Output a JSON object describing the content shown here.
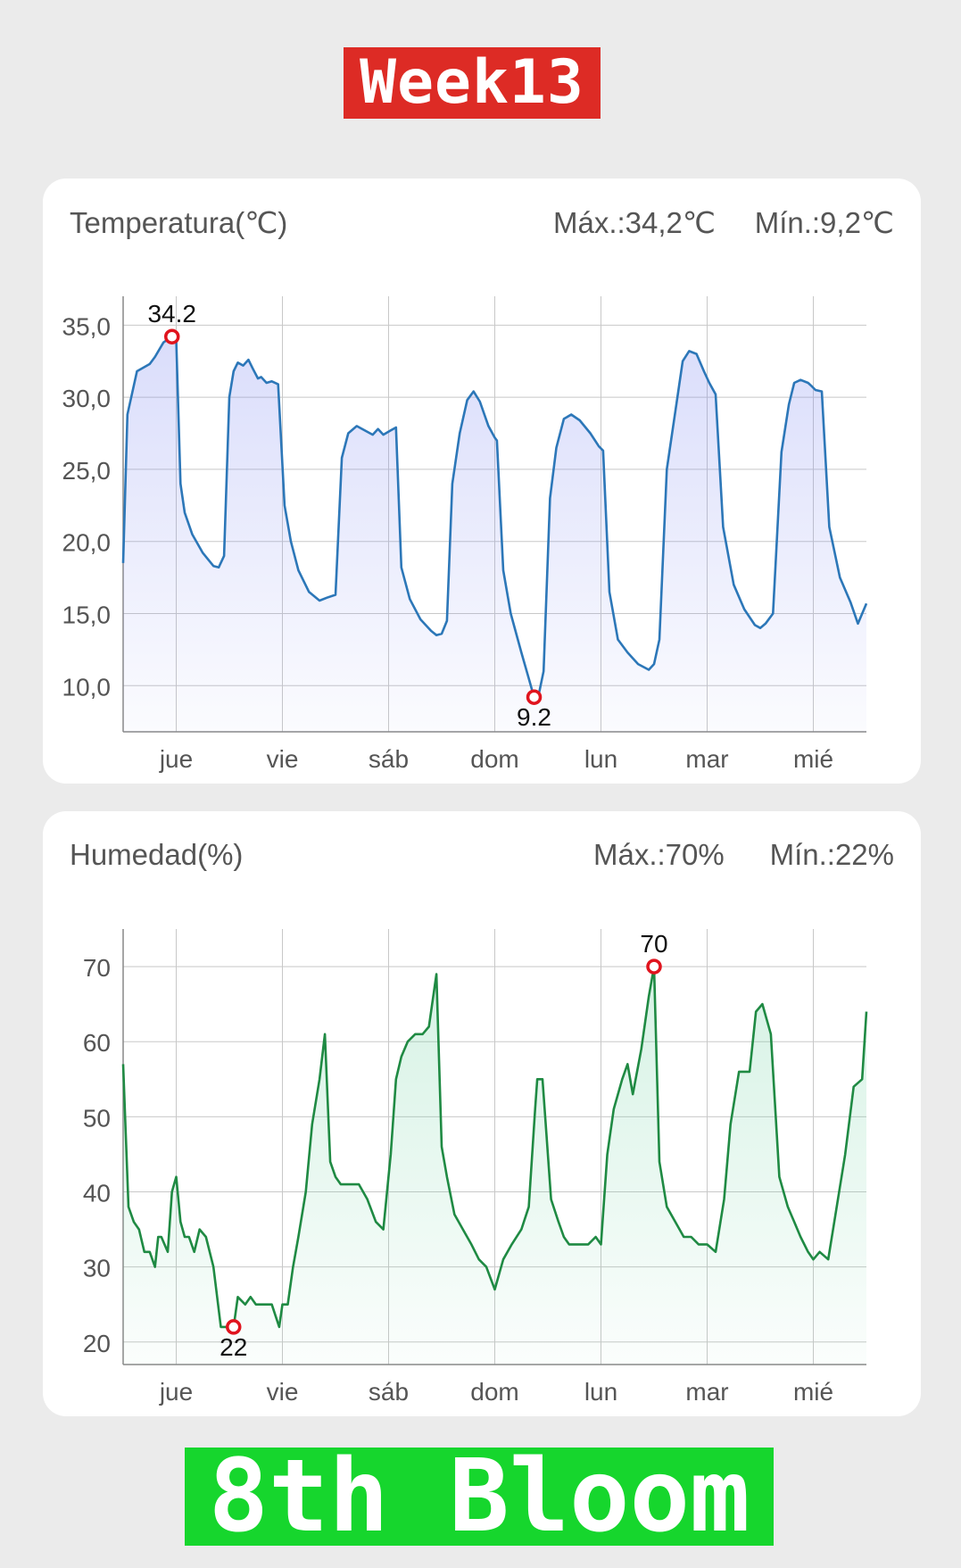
{
  "header": {
    "week_label": "Week13"
  },
  "footer": {
    "stage_label": "8th Bloom"
  },
  "colors": {
    "week_banner": "#dd2b25",
    "stage_banner": "#16d62d",
    "temp_line": "#2c77b8",
    "hum_line": "#1f8a43",
    "marker": "#e0141e"
  },
  "temperature": {
    "title": "Temperatura(℃)",
    "max_label": "Máx.:34,2℃",
    "min_label": "Mín.:9,2℃",
    "max_point_label": "34.2",
    "min_point_label": "9.2"
  },
  "humidity": {
    "title": "Humedad(%)",
    "max_label": "Máx.:70%",
    "min_label": "Mín.:22%",
    "max_point_label": "70",
    "min_point_label": "22"
  },
  "chart_data": [
    {
      "type": "area",
      "title": "Temperatura(℃)",
      "xlabel": "",
      "ylabel": "",
      "xlim": [
        0,
        7
      ],
      "ylim": [
        6.8,
        37
      ],
      "yticks": [
        10,
        15,
        20,
        25,
        30,
        35
      ],
      "ytick_labels": [
        "10,0",
        "15,0",
        "20,0",
        "25,0",
        "30,0",
        "35,0"
      ],
      "xticks": [
        0.5,
        1.5,
        2.5,
        3.5,
        4.5,
        5.5,
        6.5
      ],
      "xtick_labels": [
        "jue",
        "vie",
        "sáb",
        "dom",
        "lun",
        "mar",
        "mié"
      ],
      "grid": true,
      "max_point": {
        "x": 0.46,
        "y": 34.2
      },
      "min_point": {
        "x": 3.87,
        "y": 9.2
      },
      "series": [
        {
          "x": [
            0,
            0.04,
            0.13,
            0.25,
            0.3,
            0.38,
            0.46,
            0.5,
            0.54,
            0.58,
            0.65,
            0.75,
            0.85,
            0.9,
            0.95,
            1.0,
            1.04,
            1.08,
            1.13,
            1.18,
            1.22,
            1.27,
            1.3,
            1.35,
            1.4,
            1.46,
            1.52,
            1.58,
            1.65,
            1.75,
            1.85,
            1.92,
            2.0,
            2.06,
            2.12,
            2.2,
            2.3,
            2.35,
            2.4,
            2.45,
            2.52,
            2.57,
            2.62,
            2.7,
            2.8,
            2.9,
            2.95,
            3.0,
            3.05,
            3.1,
            3.17,
            3.24,
            3.3,
            3.36,
            3.44,
            3.5,
            3.52,
            3.58,
            3.65,
            3.75,
            3.82,
            3.87,
            3.92,
            3.96,
            4.02,
            4.08,
            4.15,
            4.22,
            4.3,
            4.4,
            4.48,
            4.52,
            4.58,
            4.66,
            4.75,
            4.85,
            4.95,
            5.0,
            5.05,
            5.12,
            5.2,
            5.27,
            5.33,
            5.4,
            5.47,
            5.52,
            5.58,
            5.65,
            5.75,
            5.85,
            5.95,
            6.0,
            6.05,
            6.12,
            6.2,
            6.27,
            6.32,
            6.38,
            6.45,
            6.48,
            6.52,
            6.58,
            6.65,
            6.75,
            6.85,
            6.92,
            7.0
          ],
          "values": [
            18.5,
            28.8,
            31.8,
            32.3,
            32.8,
            33.8,
            34.2,
            34.0,
            24.0,
            22.0,
            20.5,
            19.2,
            18.3,
            18.2,
            19.0,
            30.0,
            31.8,
            32.4,
            32.2,
            32.6,
            32.0,
            31.3,
            31.4,
            31.0,
            31.1,
            30.9,
            22.5,
            20.0,
            18.0,
            16.5,
            15.9,
            16.1,
            16.3,
            25.8,
            27.5,
            28.0,
            27.6,
            27.4,
            27.8,
            27.4,
            27.7,
            27.9,
            18.2,
            16.0,
            14.6,
            13.8,
            13.5,
            13.6,
            14.5,
            24.0,
            27.5,
            29.8,
            30.4,
            29.7,
            28.0,
            27.2,
            27.0,
            18.0,
            15.0,
            12.3,
            10.5,
            9.2,
            9.6,
            11.0,
            23.0,
            26.5,
            28.5,
            28.8,
            28.4,
            27.5,
            26.6,
            26.3,
            16.5,
            13.2,
            12.3,
            11.5,
            11.1,
            11.5,
            13.2,
            25.0,
            29.0,
            32.5,
            33.2,
            33.0,
            31.8,
            31.0,
            30.2,
            21.0,
            17.0,
            15.3,
            14.2,
            14.0,
            14.3,
            15.0,
            26.2,
            29.5,
            31.0,
            31.2,
            31.0,
            30.8,
            30.5,
            30.4,
            21.0,
            17.5,
            15.8,
            14.3,
            15.7
          ]
        }
      ]
    },
    {
      "type": "area",
      "title": "Humedad(%)",
      "xlabel": "",
      "ylabel": "",
      "xlim": [
        0,
        7
      ],
      "ylim": [
        17,
        75
      ],
      "yticks": [
        20,
        30,
        40,
        50,
        60,
        70
      ],
      "ytick_labels": [
        "20",
        "30",
        "40",
        "50",
        "60",
        "70"
      ],
      "xticks": [
        0.5,
        1.5,
        2.5,
        3.5,
        4.5,
        5.5,
        6.5
      ],
      "xtick_labels": [
        "jue",
        "vie",
        "sáb",
        "dom",
        "lun",
        "mar",
        "mié"
      ],
      "grid": true,
      "max_point": {
        "x": 5.0,
        "y": 70
      },
      "min_point": {
        "x": 1.04,
        "y": 22
      },
      "series": [
        {
          "x": [
            0,
            0.05,
            0.1,
            0.15,
            0.2,
            0.25,
            0.3,
            0.33,
            0.36,
            0.42,
            0.46,
            0.5,
            0.54,
            0.58,
            0.62,
            0.67,
            0.72,
            0.78,
            0.85,
            0.92,
            0.98,
            1.04,
            1.08,
            1.15,
            1.2,
            1.25,
            1.3,
            1.35,
            1.4,
            1.47,
            1.5,
            1.55,
            1.6,
            1.65,
            1.72,
            1.78,
            1.85,
            1.9,
            1.95,
            2.0,
            2.05,
            2.08,
            2.15,
            2.22,
            2.3,
            2.38,
            2.45,
            2.52,
            2.57,
            2.62,
            2.68,
            2.75,
            2.82,
            2.88,
            2.95,
            3.0,
            3.05,
            3.12,
            3.2,
            3.28,
            3.35,
            3.42,
            3.5,
            3.58,
            3.66,
            3.75,
            3.82,
            3.88,
            3.9,
            3.95,
            4.03,
            4.1,
            4.15,
            4.2,
            4.25,
            4.3,
            4.38,
            4.45,
            4.5,
            4.56,
            4.62,
            4.7,
            4.75,
            4.8,
            4.88,
            4.95,
            5.0,
            5.05,
            5.12,
            5.2,
            5.28,
            5.35,
            5.42,
            5.5,
            5.58,
            5.66,
            5.72,
            5.8,
            5.86,
            5.9,
            5.96,
            6.02,
            6.1,
            6.18,
            6.26,
            6.32,
            6.38,
            6.45,
            6.5,
            6.56,
            6.64,
            6.72,
            6.8,
            6.88,
            6.96,
            7.0
          ],
          "values": [
            57,
            38,
            36,
            35,
            32,
            32,
            30,
            34,
            34,
            32,
            40,
            42,
            36,
            34,
            34,
            32,
            35,
            34,
            30,
            22,
            22,
            22,
            26,
            25,
            26,
            25,
            25,
            25,
            25,
            22,
            25,
            25,
            30,
            34,
            40,
            49,
            55,
            61,
            44,
            42,
            41,
            41,
            41,
            41,
            39,
            36,
            35,
            45,
            55,
            58,
            60,
            61,
            61,
            62,
            69,
            46,
            42,
            37,
            35,
            33,
            31,
            30,
            27,
            31,
            33,
            35,
            38,
            51,
            55,
            55,
            39,
            36,
            34,
            33,
            33,
            33,
            33,
            34,
            33,
            45,
            51,
            55,
            57,
            53,
            59,
            66,
            70,
            44,
            38,
            36,
            34,
            34,
            33,
            33,
            32,
            39,
            49,
            56,
            56,
            56,
            64,
            65,
            61,
            42,
            38,
            36,
            34,
            32,
            31,
            32,
            31,
            38,
            45,
            54,
            55,
            64
          ]
        }
      ]
    }
  ]
}
